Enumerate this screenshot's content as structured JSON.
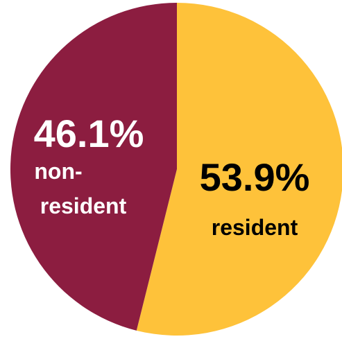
{
  "chart_data": {
    "type": "pie",
    "slices": [
      {
        "percent_label": "53.9%",
        "lines": [
          "resident"
        ],
        "value": 53.9,
        "color": "#FEC23A",
        "text_color": "#000000"
      },
      {
        "percent_label": "46.1%",
        "lines": [
          "non-",
          "resident"
        ],
        "value": 46.1,
        "color": "#8C1D40",
        "text_color": "#FFFFFF"
      }
    ]
  }
}
